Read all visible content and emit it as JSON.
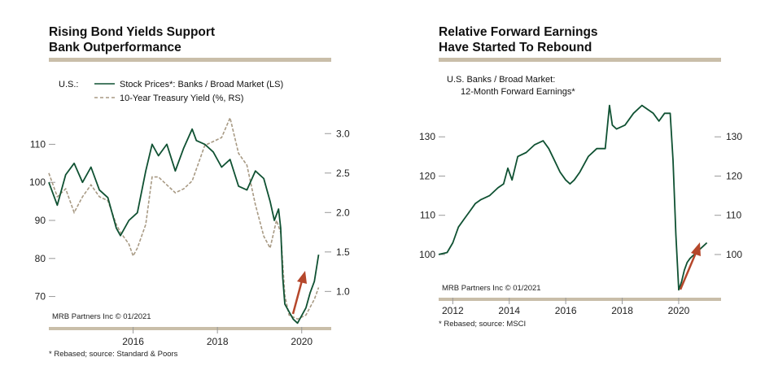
{
  "charts": [
    {
      "title_line1": "Rising Bond Yields Support",
      "title_line2": "Bank Outperformance",
      "region_label": "U.S.:",
      "credit": "MRB Partners Inc © 01/2021",
      "footnote": "* Rebased; source: Standard & Poors"
    },
    {
      "title_line1": "Relative Forward Earnings",
      "title_line2": "Have Started To Rebound",
      "label_line1": "U.S. Banks / Broad Market:",
      "label_line2": "12-Month Forward Earnings*",
      "credit": "MRB Partners Inc © 01/2021",
      "footnote": "* Rebased; source: MSCI"
    }
  ],
  "colors": {
    "green": "#0f5132",
    "tan": "#a89a84",
    "arrow": "#b5472b",
    "rule": "#c9bea9"
  },
  "chart_data": [
    {
      "type": "line",
      "title": "Rising Bond Yields Support Bank Outperformance",
      "x_range": [
        2014.5,
        2021.2
      ],
      "x_ticks": [
        "2016",
        "2018",
        "2020"
      ],
      "y_left_ticks": [
        "70",
        "80",
        "90",
        "100",
        "110"
      ],
      "y_left_range": [
        62,
        118
      ],
      "y_right_ticks": [
        "1.0",
        "1.5",
        "2.0",
        "2.5",
        "3.0"
      ],
      "y_right_range": [
        0.55,
        3.25
      ],
      "series": [
        {
          "name": "Stock Prices*: Banks / Broad Market (LS)",
          "axis": "left",
          "style": "solid",
          "x": [
            2014.5,
            2014.7,
            2014.9,
            2015.1,
            2015.3,
            2015.5,
            2015.7,
            2015.9,
            2016.1,
            2016.2,
            2016.4,
            2016.6,
            2016.8,
            2016.95,
            2017.1,
            2017.3,
            2017.5,
            2017.7,
            2017.9,
            2018.0,
            2018.2,
            2018.4,
            2018.6,
            2018.8,
            2019.0,
            2019.2,
            2019.4,
            2019.6,
            2019.75,
            2019.85,
            2019.95,
            2020.0,
            2020.05,
            2020.1,
            2020.2,
            2020.3,
            2020.4,
            2020.5,
            2020.6,
            2020.7,
            2020.8,
            2020.9
          ],
          "values": [
            100,
            94,
            102,
            105,
            100,
            104,
            98,
            96,
            88,
            86,
            90,
            92,
            103,
            110,
            107,
            110,
            103,
            109,
            114,
            111,
            110,
            108,
            104,
            106,
            99,
            98,
            103,
            101,
            95,
            90,
            93,
            88,
            75,
            68,
            66,
            64,
            63,
            65,
            67,
            71,
            74,
            81
          ]
        },
        {
          "name": "10-Year Treasury Yield (%, RS)",
          "axis": "right",
          "style": "dashed",
          "x": [
            2014.5,
            2014.7,
            2014.9,
            2015.1,
            2015.3,
            2015.5,
            2015.7,
            2015.9,
            2016.1,
            2016.2,
            2016.4,
            2016.5,
            2016.6,
            2016.8,
            2016.95,
            2017.1,
            2017.3,
            2017.5,
            2017.7,
            2017.9,
            2018.0,
            2018.2,
            2018.4,
            2018.6,
            2018.8,
            2019.0,
            2019.2,
            2019.4,
            2019.6,
            2019.75,
            2019.9,
            2020.0,
            2020.1,
            2020.2,
            2020.4,
            2020.6,
            2020.8,
            2020.9
          ],
          "values": [
            2.5,
            2.2,
            2.3,
            2.0,
            2.2,
            2.35,
            2.2,
            2.15,
            1.85,
            1.75,
            1.6,
            1.45,
            1.55,
            1.85,
            2.45,
            2.45,
            2.35,
            2.25,
            2.3,
            2.4,
            2.55,
            2.85,
            2.9,
            2.95,
            3.2,
            2.75,
            2.6,
            2.1,
            1.7,
            1.55,
            1.9,
            1.75,
            0.95,
            0.7,
            0.65,
            0.7,
            0.9,
            1.05
          ]
        }
      ]
    },
    {
      "type": "line",
      "title": "Relative Forward Earnings Have Started To Rebound",
      "x_range": [
        2011.5,
        2021.5
      ],
      "x_ticks": [
        "2012",
        "2014",
        "2016",
        "2018",
        "2020"
      ],
      "y_ticks": [
        "100",
        "110",
        "120",
        "130"
      ],
      "y_range": [
        89,
        140
      ],
      "series": [
        {
          "name": "U.S. Banks / Broad Market: 12-Month Forward Earnings*",
          "axis": "left",
          "style": "solid",
          "x": [
            2011.5,
            2011.8,
            2012.0,
            2012.2,
            2012.4,
            2012.6,
            2012.8,
            2013.0,
            2013.3,
            2013.6,
            2013.8,
            2013.95,
            2014.1,
            2014.3,
            2014.6,
            2014.9,
            2015.2,
            2015.4,
            2015.6,
            2015.8,
            2016.0,
            2016.15,
            2016.3,
            2016.5,
            2016.8,
            2017.1,
            2017.4,
            2017.55,
            2017.65,
            2017.8,
            2018.1,
            2018.4,
            2018.7,
            2018.9,
            2019.1,
            2019.3,
            2019.5,
            2019.7,
            2019.8,
            2019.9,
            2020.0,
            2020.1,
            2020.2,
            2020.3,
            2020.4,
            2020.55,
            2020.7,
            2020.85,
            2021.0
          ],
          "values": [
            100,
            100.5,
            103,
            107,
            109,
            111,
            113,
            114,
            115,
            117,
            118,
            122,
            119,
            125,
            126,
            128,
            129,
            127,
            124,
            121,
            119,
            118,
            119,
            121,
            125,
            127,
            127,
            138,
            133,
            132,
            133,
            136,
            138,
            137,
            136,
            134,
            136,
            136,
            124,
            105,
            91,
            93,
            96,
            98,
            99,
            100,
            101,
            102,
            103
          ]
        }
      ]
    }
  ]
}
